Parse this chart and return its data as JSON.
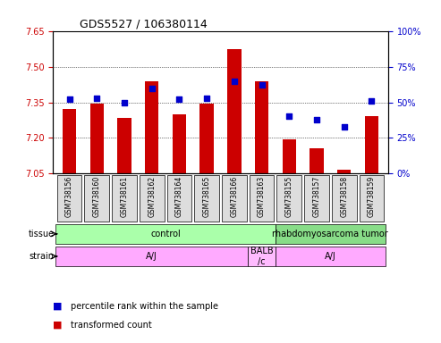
{
  "title": "GDS5527 / 106380114",
  "samples": [
    "GSM738156",
    "GSM738160",
    "GSM738161",
    "GSM738162",
    "GSM738164",
    "GSM738165",
    "GSM738166",
    "GSM738163",
    "GSM738155",
    "GSM738157",
    "GSM738158",
    "GSM738159"
  ],
  "transformed_counts": [
    7.32,
    7.345,
    7.285,
    7.44,
    7.3,
    7.345,
    7.575,
    7.44,
    7.195,
    7.155,
    7.065,
    7.29
  ],
  "percentile_ranks": [
    52,
    53,
    50,
    60,
    52,
    53,
    65,
    62,
    40,
    38,
    33,
    51
  ],
  "bar_bottom": 7.05,
  "ylim_left": [
    7.05,
    7.65
  ],
  "ylim_right": [
    0,
    100
  ],
  "yticks_left": [
    7.05,
    7.2,
    7.35,
    7.5,
    7.65
  ],
  "yticks_right": [
    0,
    25,
    50,
    75,
    100
  ],
  "ytick_labels_right": [
    "0%",
    "25%",
    "50%",
    "75%",
    "100%"
  ],
  "grid_values": [
    7.2,
    7.35,
    7.5
  ],
  "bar_color": "#cc0000",
  "dot_color": "#0000cc",
  "tissue_groups": [
    {
      "label": "control",
      "start": 0,
      "end": 8,
      "color": "#aaffaa"
    },
    {
      "label": "rhabdomyosarcoma tumor",
      "start": 8,
      "end": 12,
      "color": "#88dd88"
    }
  ],
  "strain_groups": [
    {
      "label": "A/J",
      "start": 0,
      "end": 7,
      "color": "#ffaaff"
    },
    {
      "label": "BALB\n/c",
      "start": 7,
      "end": 8,
      "color": "#ffaaff"
    },
    {
      "label": "A/J",
      "start": 8,
      "end": 12,
      "color": "#ffaaff"
    }
  ],
  "legend_items": [
    {
      "label": "transformed count",
      "color": "#cc0000",
      "marker": "s"
    },
    {
      "label": "percentile rank within the sample",
      "color": "#0000cc",
      "marker": "s"
    }
  ],
  "xlabel_color": "#cc0000",
  "ylabel_left_color": "#cc0000",
  "ylabel_right_color": "#0000cc",
  "background_color": "#ffffff",
  "plot_bg_color": "#ffffff",
  "tick_label_bg": "#dddddd"
}
